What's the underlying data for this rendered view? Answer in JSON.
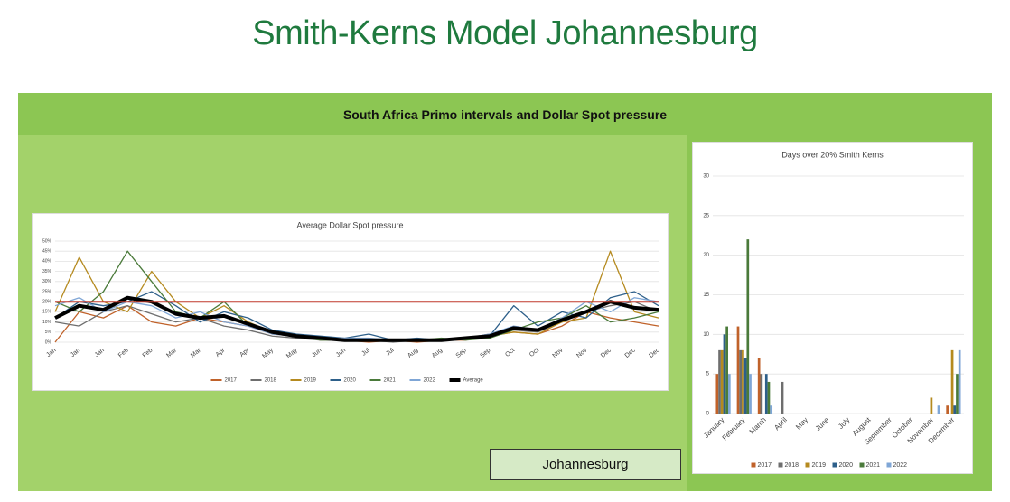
{
  "header": {
    "title": "Smith-Kerns Model Johannesburg"
  },
  "panel": {
    "title": "South Africa Primo intervals and Dollar Spot pressure",
    "button": "Johannesburg"
  },
  "chart_data": [
    {
      "type": "line",
      "title": "Average Dollar Spot pressure",
      "categories": [
        "Jan",
        "Jan",
        "Jan",
        "Feb",
        "Feb",
        "Mar",
        "Mar",
        "Apr",
        "Apr",
        "May",
        "May",
        "Jun",
        "Jun",
        "Jul",
        "Jul",
        "Aug",
        "Aug",
        "Sep",
        "Sep",
        "Oct",
        "Oct",
        "Nov",
        "Nov",
        "Dec",
        "Dec",
        "Dec"
      ],
      "series": [
        {
          "name": "2017",
          "color": "#c0622a",
          "values": [
            0,
            15,
            12,
            18,
            10,
            8,
            12,
            10,
            8,
            4,
            3,
            1,
            1,
            0,
            1,
            0,
            1,
            1,
            3,
            5,
            4,
            8,
            15,
            12,
            10,
            8
          ]
        },
        {
          "name": "2018",
          "color": "#6e6e6e",
          "values": [
            10,
            8,
            15,
            18,
            14,
            10,
            12,
            8,
            6,
            3,
            2,
            1,
            1,
            1,
            0,
            1,
            1,
            2,
            4,
            6,
            5,
            10,
            15,
            18,
            20,
            15
          ]
        },
        {
          "name": "2019",
          "color": "#b58a1f",
          "values": [
            15,
            42,
            20,
            15,
            35,
            20,
            12,
            18,
            10,
            5,
            3,
            2,
            1,
            1,
            1,
            1,
            1,
            2,
            3,
            5,
            4,
            10,
            12,
            45,
            15,
            12
          ]
        },
        {
          "name": "2020",
          "color": "#2d5f8a",
          "values": [
            12,
            20,
            18,
            20,
            25,
            18,
            10,
            15,
            12,
            6,
            4,
            3,
            2,
            4,
            1,
            2,
            1,
            2,
            3,
            18,
            8,
            15,
            12,
            22,
            25,
            18
          ]
        },
        {
          "name": "2021",
          "color": "#4a7a3a",
          "values": [
            20,
            15,
            25,
            45,
            30,
            15,
            12,
            20,
            8,
            5,
            3,
            1,
            1,
            1,
            1,
            1,
            2,
            1,
            2,
            6,
            10,
            12,
            18,
            10,
            12,
            15
          ]
        },
        {
          "name": "2022",
          "color": "#7fa6d6",
          "values": [
            18,
            22,
            15,
            20,
            18,
            12,
            15,
            10,
            8,
            4,
            3,
            2,
            2,
            2,
            1,
            1,
            1,
            2,
            4,
            8,
            6,
            12,
            20,
            15,
            22,
            20
          ]
        },
        {
          "name": "Average",
          "color": "#000000",
          "width": 4,
          "values": [
            12,
            18,
            16,
            22,
            20,
            14,
            12,
            13,
            9,
            5,
            3,
            2,
            1,
            1,
            1,
            1,
            1,
            2,
            3,
            7,
            6,
            11,
            15,
            20,
            17,
            16
          ]
        }
      ],
      "threshold": 20,
      "threshold_color": "#c0392b",
      "ylim": [
        0,
        50
      ],
      "yticks": [
        {
          "value": 0,
          "label": "0%"
        },
        {
          "value": 5,
          "label": "5%"
        },
        {
          "value": 10,
          "label": "10%"
        },
        {
          "value": 15,
          "label": "15%"
        },
        {
          "value": 20,
          "label": "20%"
        },
        {
          "value": 25,
          "label": "25%"
        },
        {
          "value": 30,
          "label": "30%"
        },
        {
          "value": 35,
          "label": "35%"
        },
        {
          "value": 40,
          "label": "40%"
        },
        {
          "value": 45,
          "label": "45%"
        },
        {
          "value": 50,
          "label": "50%"
        }
      ],
      "grid": true
    },
    {
      "type": "bar",
      "title": "Days over 20% Smith Kerns",
      "categories": [
        "January",
        "February",
        "March",
        "April",
        "May",
        "June",
        "July",
        "August",
        "September",
        "October",
        "November",
        "December"
      ],
      "series": [
        {
          "name": "2017",
          "color": "#c0622a",
          "values": [
            5,
            11,
            7,
            0,
            0,
            0,
            0,
            0,
            0,
            0,
            0,
            1
          ]
        },
        {
          "name": "2018",
          "color": "#6e6e6e",
          "values": [
            8,
            8,
            5,
            4,
            0,
            0,
            0,
            0,
            0,
            0,
            0,
            0
          ]
        },
        {
          "name": "2019",
          "color": "#b58a1f",
          "values": [
            8,
            8,
            0,
            0,
            0,
            0,
            0,
            0,
            0,
            0,
            2,
            8
          ]
        },
        {
          "name": "2020",
          "color": "#2d5f8a",
          "values": [
            10,
            7,
            5,
            0,
            0,
            0,
            0,
            0,
            0,
            0,
            0,
            1
          ]
        },
        {
          "name": "2021",
          "color": "#4a7a3a",
          "values": [
            11,
            22,
            4,
            0,
            0,
            0,
            0,
            0,
            0,
            0,
            0,
            5
          ]
        },
        {
          "name": "2022",
          "color": "#7fa6d6",
          "values": [
            5,
            5,
            1,
            0,
            0,
            0,
            0,
            0,
            0,
            0,
            1,
            8
          ]
        }
      ],
      "ylim": [
        0,
        30
      ],
      "yticks": [
        0,
        5,
        10,
        15,
        20,
        25,
        30
      ],
      "grid": true
    }
  ]
}
